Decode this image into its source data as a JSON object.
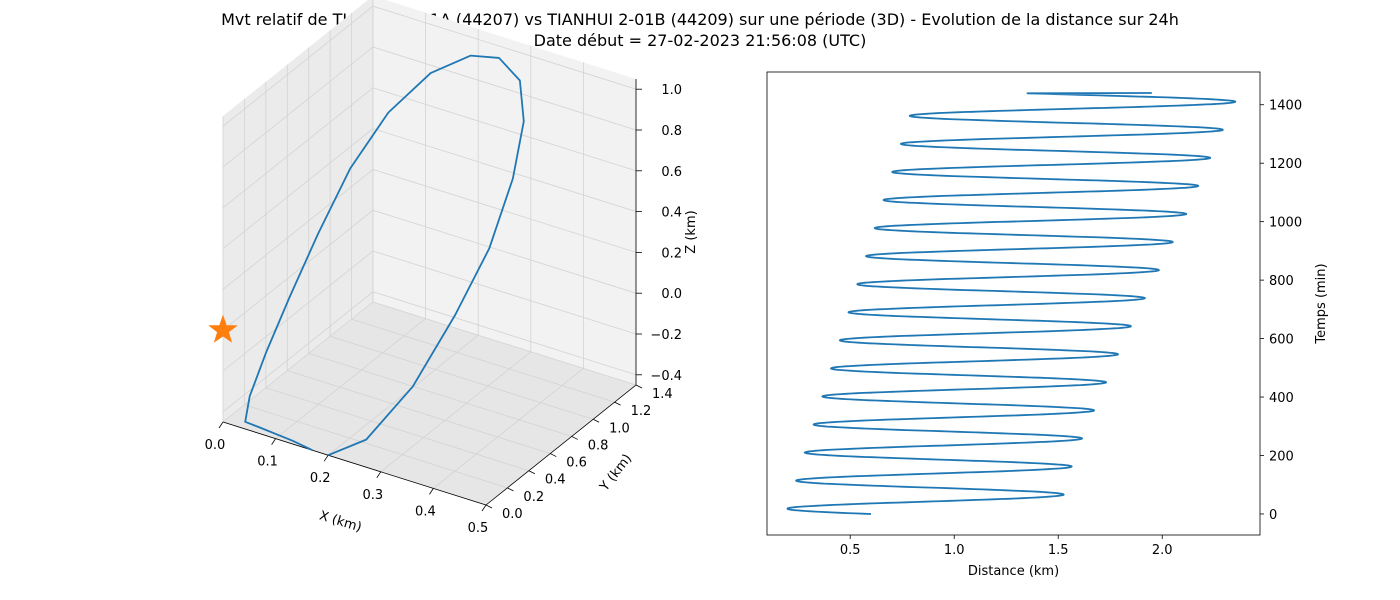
{
  "title": "Mvt relatif de TIANHUI 2-01A (44207) vs TIANHUI 2-01B (44209) sur une période (3D) - Evolution de la distance sur 24h",
  "subtitle": "Date début = 27-02-2023 21:56:08 (UTC)",
  "colors": {
    "series": "#1f77b4",
    "marker": "#ff7f0e",
    "pane_side": "#ebebeb",
    "pane_back": "#f2f2f2",
    "grid": "#d3d3d3"
  },
  "chart_data": [
    {
      "type": "line3d",
      "xlabel": "X (km)",
      "ylabel": "Y (km)",
      "zlabel": "Z (km)",
      "xticks": [
        "0.0",
        "0.1",
        "0.2",
        "0.3",
        "0.4",
        "0.5"
      ],
      "yticks": [
        "0.0",
        "0.2",
        "0.4",
        "0.6",
        "0.8",
        "1.0",
        "1.2",
        "1.4"
      ],
      "zticks": [
        "−0.4",
        "−0.2",
        "0.0",
        "0.2",
        "0.4",
        "0.6",
        "0.8",
        "1.0"
      ],
      "xlim": [
        0.0,
        0.5
      ],
      "ylim": [
        0.0,
        1.4
      ],
      "zlim": [
        -0.45,
        1.05
      ],
      "grid": true,
      "marker": {
        "shape": "star",
        "x": 0.0,
        "y": 0.0,
        "z": 0.0
      },
      "series": [
        {
          "x": [
            0.2,
            0.26,
            0.32,
            0.36,
            0.38,
            0.38,
            0.36,
            0.32,
            0.26,
            0.2,
            0.13,
            0.07,
            0.03,
            0.01,
            0.0,
            0.0,
            0.01,
            0.03,
            0.07,
            0.13,
            0.17
          ],
          "y": [
            0.0,
            0.06,
            0.2,
            0.4,
            0.62,
            0.84,
            1.04,
            1.2,
            1.3,
            1.33,
            1.3,
            1.2,
            1.04,
            0.84,
            0.62,
            0.4,
            0.2,
            0.06,
            0.0,
            0.01,
            0.0
          ],
          "z": [
            -0.45,
            -0.35,
            -0.1,
            0.2,
            0.45,
            0.7,
            0.88,
            0.98,
            1.0,
            0.95,
            0.82,
            0.62,
            0.38,
            0.13,
            -0.1,
            -0.28,
            -0.4,
            -0.45,
            -0.42,
            -0.44,
            -0.45
          ]
        }
      ]
    },
    {
      "type": "line",
      "xlabel": "Distance (km)",
      "ylabel": "Temps (min)",
      "xticks": [
        "0.5",
        "1.0",
        "1.5",
        "2.0"
      ],
      "yticks": [
        "0",
        "200",
        "400",
        "600",
        "800",
        "1000",
        "1200",
        "1400"
      ],
      "xlim": [
        0.1,
        2.47
      ],
      "ylim": [
        -72,
        1512
      ],
      "y_axis_side": "right",
      "grid": false,
      "oscillation": {
        "period_min": 96,
        "t_start": 0,
        "t_end": 1440,
        "start_distance": 0.6,
        "end_distance": 1.95,
        "min_t": [
          0,
          1440
        ],
        "min_values": [
          0.19,
          0.82
        ],
        "max_t": [
          0,
          200,
          400,
          600,
          800,
          1000,
          1200,
          1440
        ],
        "max_values": [
          1.5,
          1.58,
          1.7,
          1.82,
          1.96,
          2.1,
          2.22,
          2.37
        ]
      }
    }
  ]
}
